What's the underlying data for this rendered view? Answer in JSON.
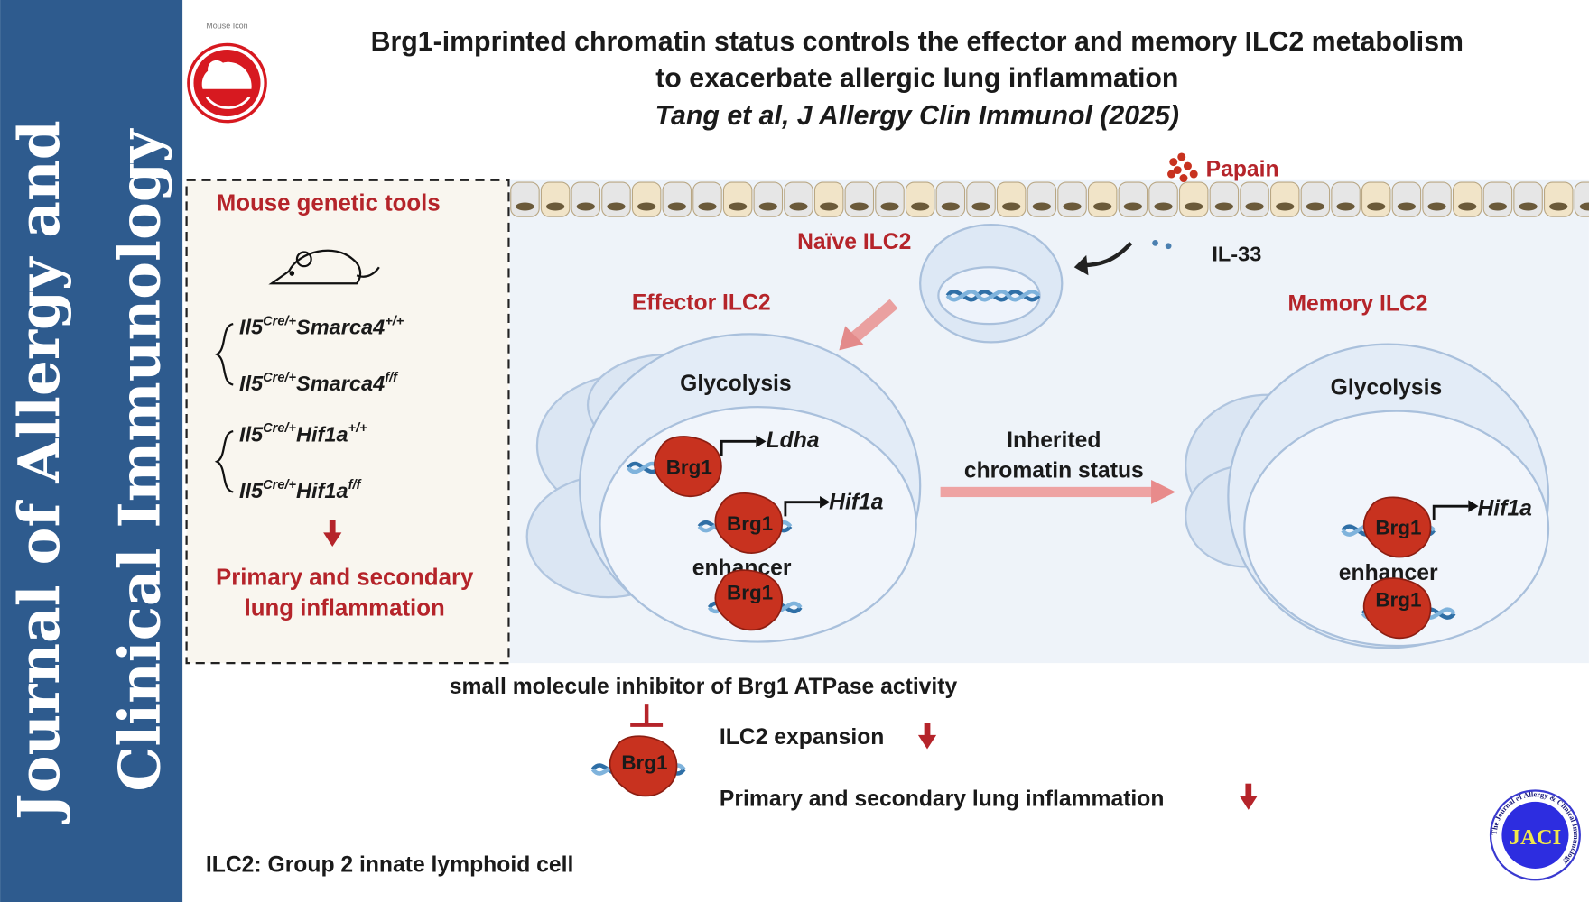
{
  "sidebar": {
    "line1": "Journal of Allergy and",
    "line2": "Clinical Immunology",
    "color": "#2e5b8e"
  },
  "logo": {
    "caption": "Mouse Icon",
    "icon": "mouse-icon",
    "color": "#d71920"
  },
  "title": {
    "line1": "Brg1-imprinted chromatin status controls the effector and memory ILC2 metabolism",
    "line2": "to exacerbate allergic lung inflammation",
    "citation": "Tang et al, J Allergy Clin Immunol (2025)"
  },
  "left_panel": {
    "heading": "Mouse genetic tools",
    "genotypes": [
      {
        "base": "Il5",
        "sup1": "Cre/+",
        "gene": "Smarca4",
        "sup2": "+/+"
      },
      {
        "base": "Il5",
        "sup1": "Cre/+",
        "gene": "Smarca4",
        "sup2": "f/f"
      },
      {
        "base": "Il5",
        "sup1": "Cre/+",
        "gene": "Hif1a",
        "sup2": "+/+"
      },
      {
        "base": "Il5",
        "sup1": "Cre/+",
        "gene": "Hif1a",
        "sup2": "f/f"
      }
    ],
    "outcome_line1": "Primary and secondary",
    "outcome_line2": "lung inflammation"
  },
  "diagram": {
    "papain": "Papain",
    "il33": "IL-33",
    "naive": "Naïve ILC2",
    "effector": "Effector ILC2",
    "memory": "Memory ILC2",
    "glycolysis": "Glycolysis",
    "brg1": "Brg1",
    "ldha": "Ldha",
    "hif1a": "Hif1a",
    "enhancer": "enhancer",
    "inherited_line1": "Inherited",
    "inherited_line2": "chromatin status"
  },
  "bottom": {
    "inhibitor": "small molecule inhibitor of Brg1 ATPase activity",
    "expansion": "ILC2 expansion",
    "inflammation": "Primary and secondary lung inflammation",
    "footnote": "ILC2: Group 2 innate lymphoid cell"
  },
  "jaci_logo": {
    "text": "JACI",
    "ring_text": "The Journal of Allergy & Clinical Immunology"
  }
}
